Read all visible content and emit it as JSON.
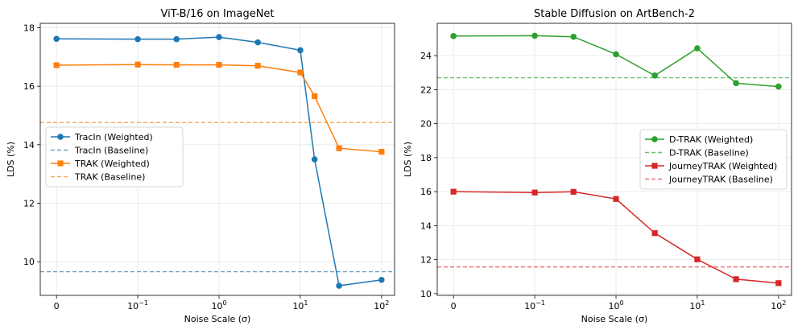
{
  "chart_data": [
    {
      "type": "line",
      "title": "ViT-B/16 on ImageNet",
      "xlabel": "Noise Scale (σ)",
      "ylabel": "LDS (%)",
      "xscale": "symlog",
      "xticks": [
        {
          "value": 0,
          "base": "0",
          "exp": ""
        },
        {
          "value": 0.1,
          "base": "10",
          "exp": "−1"
        },
        {
          "value": 1,
          "base": "10",
          "exp": "0"
        },
        {
          "value": 10,
          "base": "10",
          "exp": "1"
        },
        {
          "value": 100,
          "base": "10",
          "exp": "2"
        }
      ],
      "yticks": [
        10,
        12,
        14,
        16,
        18
      ],
      "ylim": [
        8.85,
        18.15
      ],
      "legend_position": "center-left",
      "x": [
        0,
        0.1,
        0.3,
        1,
        3,
        10,
        15,
        30,
        100
      ],
      "series": [
        {
          "name": "TracIn (Weighted)",
          "color": "#1f77b4",
          "marker": "circle",
          "values": [
            17.62,
            17.61,
            17.61,
            17.68,
            17.5,
            17.23,
            13.5,
            9.18,
            9.38
          ]
        },
        {
          "name": "TRAK (Weighted)",
          "color": "#ff7f0e",
          "marker": "square",
          "values": [
            16.72,
            16.74,
            16.73,
            16.73,
            16.7,
            16.47,
            15.66,
            13.88,
            13.76
          ]
        }
      ],
      "baselines": [
        {
          "name": "TracIn (Baseline)",
          "color": "#6fa0c3",
          "value": 9.66
        },
        {
          "name": "TRAK (Baseline)",
          "color": "#f7a95a",
          "value": 14.76
        }
      ]
    },
    {
      "type": "line",
      "title": "Stable Diffusion on ArtBench-2",
      "xlabel": "Noise Scale (σ)",
      "ylabel": "LDS (%)",
      "xscale": "symlog",
      "xticks": [
        {
          "value": 0,
          "base": "0",
          "exp": ""
        },
        {
          "value": 0.1,
          "base": "10",
          "exp": "−1"
        },
        {
          "value": 1,
          "base": "10",
          "exp": "0"
        },
        {
          "value": 10,
          "base": "10",
          "exp": "1"
        },
        {
          "value": 100,
          "base": "10",
          "exp": "2"
        }
      ],
      "yticks": [
        10,
        12,
        14,
        16,
        18,
        20,
        22,
        24
      ],
      "ylim": [
        9.9,
        25.9
      ],
      "legend_position": "center-right",
      "x": [
        0,
        0.1,
        0.3,
        1,
        3,
        10,
        30,
        100
      ],
      "series": [
        {
          "name": "D-TRAK (Weighted)",
          "color": "#2ca02c",
          "marker": "circle",
          "values": [
            25.15,
            25.17,
            25.11,
            24.08,
            22.83,
            24.43,
            22.38,
            22.18
          ]
        },
        {
          "name": "JourneyTRAK (Weighted)",
          "color": "#d62728",
          "marker": "square",
          "values": [
            16.0,
            15.95,
            15.99,
            15.57,
            13.56,
            12.02,
            10.85,
            10.62
          ]
        }
      ],
      "baselines": [
        {
          "name": "D-TRAK (Baseline)",
          "color": "#6cc06c",
          "value": 22.7
        },
        {
          "name": "JourneyTRAK (Baseline)",
          "color": "#e67070",
          "value": 11.57
        }
      ]
    }
  ]
}
